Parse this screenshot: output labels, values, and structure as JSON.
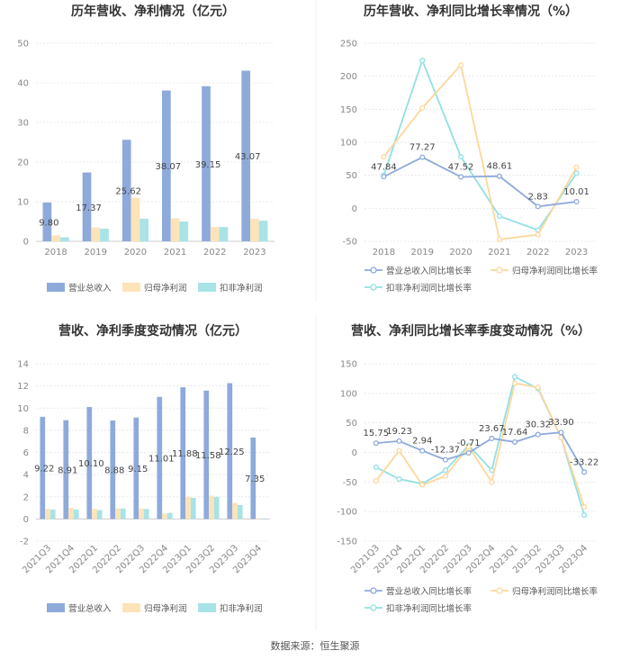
{
  "source": "数据来源：恒生聚源",
  "colors": {
    "revenue_bar": "#8eaadb",
    "parent_profit_bar": "#fde3b8",
    "deducted_profit_bar": "#a8e3e6",
    "revenue_line": "#8eaadb",
    "parent_line": "#fdd79b",
    "deducted_line": "#91e0e3"
  },
  "chart_data": [
    {
      "id": "annual_bars",
      "type": "bar",
      "title": "历年营收、净利情况（亿元）",
      "categories": [
        "2018",
        "2019",
        "2020",
        "2021",
        "2022",
        "2023"
      ],
      "ylim": [
        0,
        50
      ],
      "yticks": [
        0,
        10,
        20,
        30,
        40,
        50
      ],
      "series": [
        {
          "name": "营业总收入",
          "values": [
            9.8,
            17.37,
            25.62,
            38.07,
            39.15,
            43.07
          ],
          "labels": [
            "9.80",
            "17.37",
            "25.62",
            "38.07",
            "39.15",
            "43.07"
          ]
        },
        {
          "name": "归母净利润",
          "values": [
            1.5,
            3.5,
            11.0,
            5.8,
            3.6,
            5.7
          ]
        },
        {
          "name": "扣非净利润",
          "values": [
            1.0,
            3.2,
            5.7,
            5.0,
            3.6,
            5.2
          ]
        }
      ]
    },
    {
      "id": "annual_growth",
      "type": "line",
      "title": "历年营收、净利同比增长率情况（%）",
      "categories": [
        "2018",
        "2019",
        "2020",
        "2021",
        "2022",
        "2023"
      ],
      "ylim": [
        -50,
        250
      ],
      "yticks": [
        -50,
        0,
        50,
        100,
        150,
        200,
        250
      ],
      "series": [
        {
          "name": "营业总收入同比增长率",
          "values": [
            47.84,
            77.27,
            47.52,
            48.61,
            2.83,
            10.01
          ],
          "labels": [
            "47.84",
            "77.27",
            "47.52",
            "48.61",
            "2.83",
            "10.01"
          ]
        },
        {
          "name": "归母净利润同比增长率",
          "values": [
            78,
            152,
            217,
            -47,
            -40,
            62
          ]
        },
        {
          "name": "扣非净利润同比增长率",
          "values": [
            50,
            224,
            78,
            -12,
            -33,
            53
          ]
        }
      ]
    },
    {
      "id": "quarterly_bars",
      "type": "bar",
      "title": "营收、净利季度变动情况（亿元）",
      "categories": [
        "2021Q3",
        "2021Q4",
        "2022Q1",
        "2022Q2",
        "2022Q3",
        "2022Q4",
        "2023Q1",
        "2023Q2",
        "2023Q3",
        "2023Q4"
      ],
      "ylim": [
        -2,
        14
      ],
      "yticks": [
        -2,
        0,
        2,
        4,
        6,
        8,
        10,
        12,
        14
      ],
      "series": [
        {
          "name": "营业总收入",
          "values": [
            9.22,
            8.91,
            10.1,
            8.88,
            9.15,
            11.01,
            11.88,
            11.58,
            12.25,
            7.35
          ],
          "labels": [
            "9.22",
            "8.91",
            "10.10",
            "8.88",
            "9.15",
            "11.01",
            "11.88",
            "11.58",
            "12.25",
            "7.35"
          ]
        },
        {
          "name": "归母净利润",
          "values": [
            0.9,
            1.0,
            0.9,
            0.95,
            0.95,
            0.5,
            2.0,
            2.1,
            1.45,
            0.05
          ]
        },
        {
          "name": "扣非净利润",
          "values": [
            0.85,
            0.85,
            0.8,
            0.95,
            0.9,
            0.55,
            1.9,
            2.0,
            1.25,
            -0.05
          ]
        }
      ]
    },
    {
      "id": "quarterly_growth",
      "type": "line",
      "title": "营收、净利同比增长率季度变动情况（%）",
      "categories": [
        "2021Q3",
        "2021Q4",
        "2022Q1",
        "2022Q2",
        "2022Q3",
        "2022Q4",
        "2023Q1",
        "2023Q2",
        "2023Q3",
        "2023Q4"
      ],
      "ylim": [
        -150,
        150
      ],
      "yticks": [
        -150,
        -100,
        -50,
        0,
        50,
        100,
        150
      ],
      "series": [
        {
          "name": "营业总收入同比增长率",
          "values": [
            15.75,
            19.23,
            2.94,
            -12.37,
            -0.71,
            23.67,
            17.64,
            30.32,
            33.9,
            -33.22
          ],
          "labels": [
            "15.75",
            "19.23",
            "2.94",
            "-12.37",
            "-0.71",
            "23.67",
            "17.64",
            "30.32",
            "33.90",
            "-33.22"
          ]
        },
        {
          "name": "归母净利润同比增长率",
          "values": [
            -48,
            3,
            -55,
            -40,
            10,
            -50,
            117,
            110,
            25,
            -92
          ]
        },
        {
          "name": "扣非净利润同比增长率",
          "values": [
            -25,
            -45,
            -53,
            -30,
            12,
            -30,
            128,
            108,
            25,
            -106
          ]
        }
      ]
    }
  ]
}
